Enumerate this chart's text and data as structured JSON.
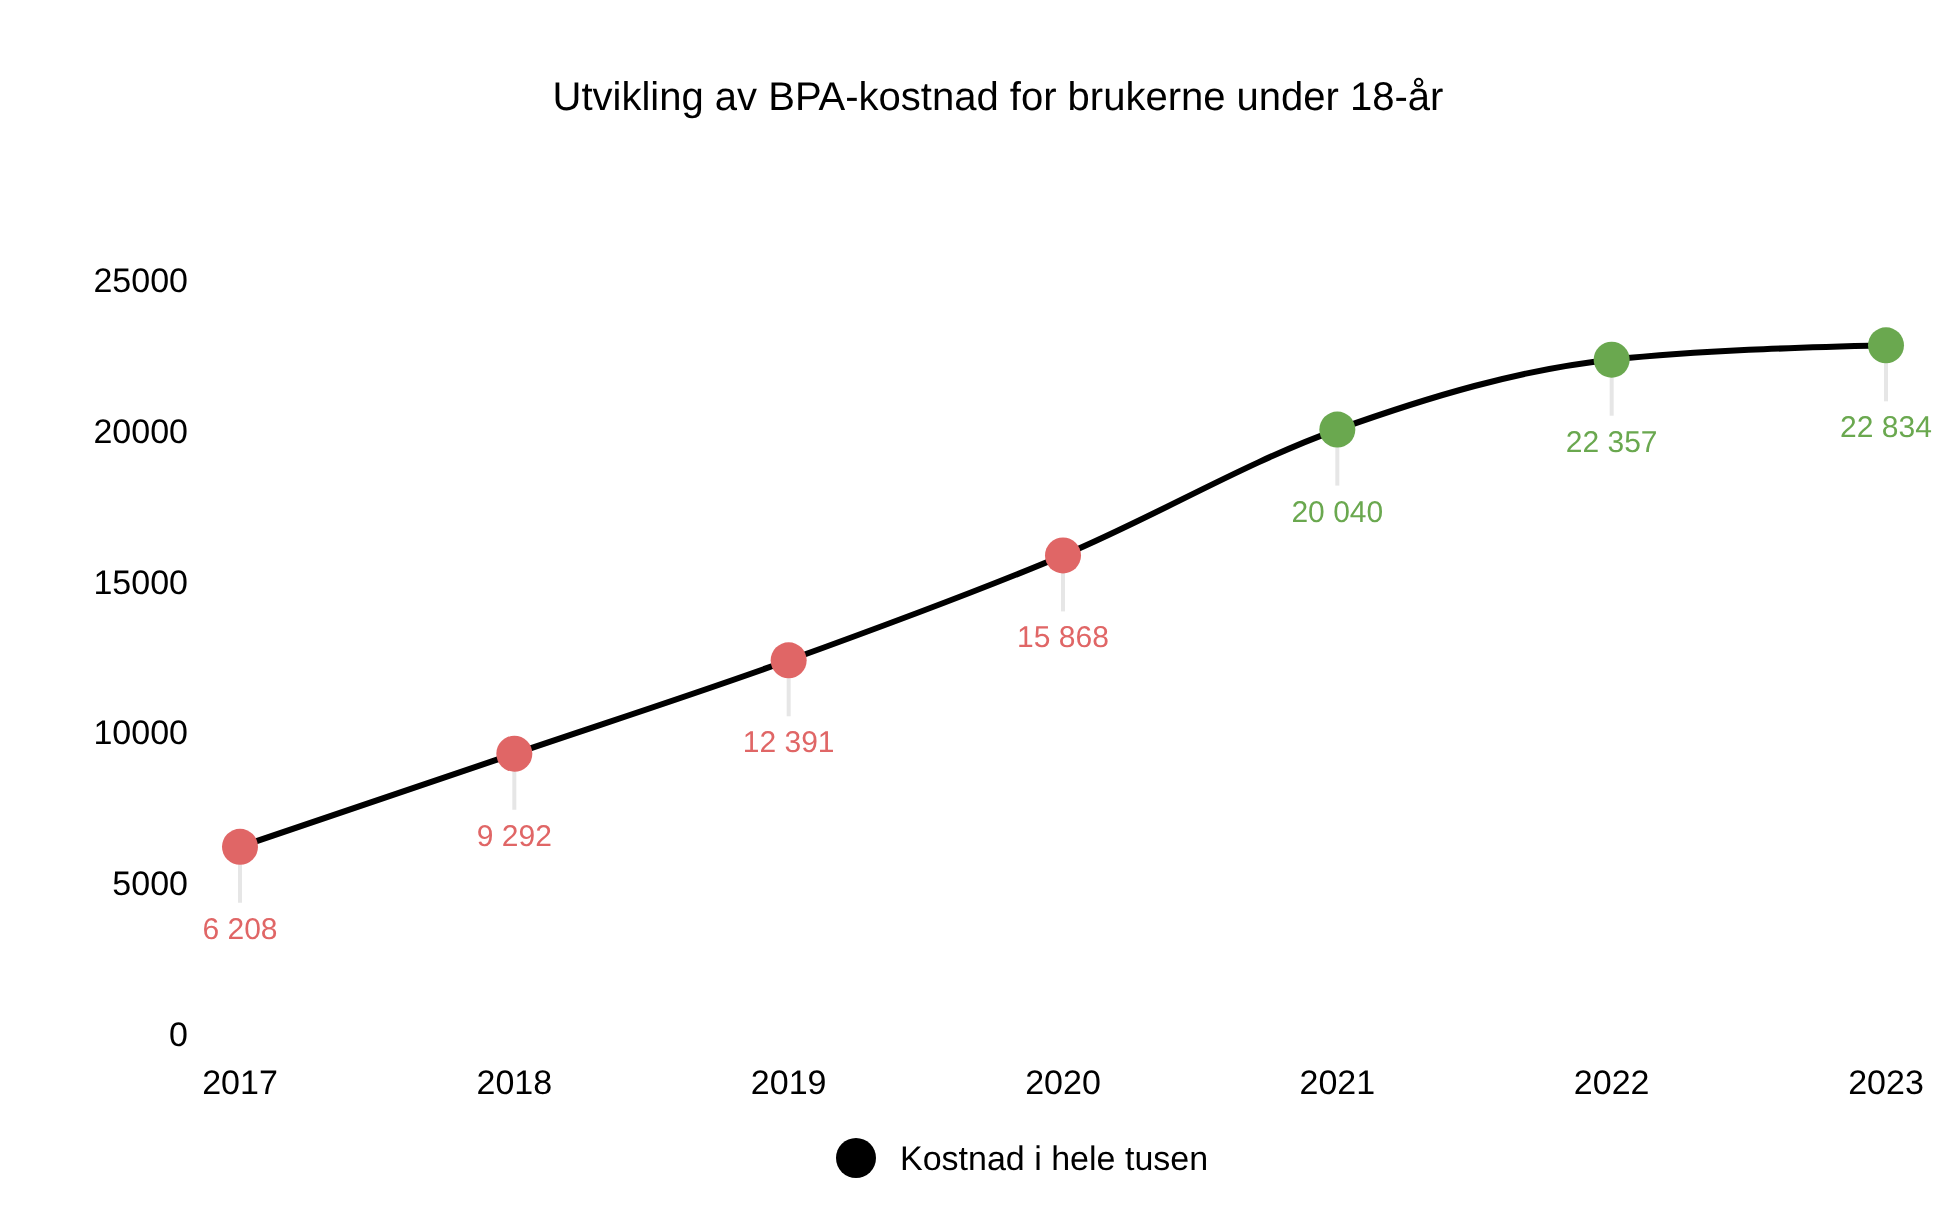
{
  "chart_data": {
    "type": "line",
    "title": "Utvikling av BPA-kostnad for brukerne under 18-år",
    "categories": [
      "2017",
      "2018",
      "2019",
      "2020",
      "2021",
      "2022",
      "2023"
    ],
    "series": [
      {
        "name": "Kostnad i hele tusen",
        "color": "#000000",
        "values": [
          6208,
          9292,
          12391,
          15868,
          20040,
          22357,
          22834
        ],
        "colors": [
          "#e06666",
          "#e06666",
          "#e06666",
          "#e06666",
          "#6aa84f",
          "#6aa84f",
          "#6aa84f"
        ],
        "value_labels": [
          "6 208",
          "9 292",
          "12 391",
          "15 868",
          "20 040",
          "22 357",
          "22 834"
        ]
      }
    ],
    "ylim": [
      0,
      25000
    ],
    "yticks": [
      0,
      5000,
      10000,
      15000,
      20000,
      25000
    ],
    "marker": "circle",
    "line_style": "solid",
    "legend": "bottom",
    "grid": false
  }
}
